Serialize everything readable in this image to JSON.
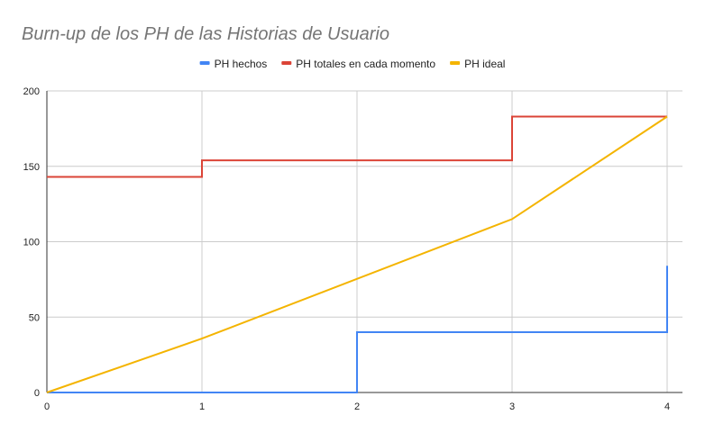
{
  "chart_data": {
    "type": "line",
    "title": "Burn-up de los PH de las Historias de Usuario",
    "xlabel": "",
    "ylabel": "",
    "xlim": [
      0,
      4
    ],
    "ylim": [
      0,
      200
    ],
    "x_ticks": [
      0,
      1,
      2,
      3,
      4
    ],
    "y_ticks": [
      0,
      50,
      100,
      150,
      200
    ],
    "grid": true,
    "legend_position": "top",
    "series": [
      {
        "name": "PH hechos",
        "color": "#4285f4",
        "step": true,
        "points": [
          [
            0,
            0
          ],
          [
            2,
            0
          ],
          [
            2,
            40
          ],
          [
            4,
            40
          ],
          [
            4,
            84
          ]
        ]
      },
      {
        "name": "PH totales en cada momento",
        "color": "#db4437",
        "step": true,
        "points": [
          [
            0,
            143
          ],
          [
            1,
            143
          ],
          [
            1,
            154
          ],
          [
            3,
            154
          ],
          [
            3,
            183
          ],
          [
            4,
            183
          ]
        ]
      },
      {
        "name": "PH ideal",
        "color": "#f4b400",
        "step": false,
        "points": [
          [
            0,
            0
          ],
          [
            1,
            35.75
          ],
          [
            3,
            115
          ],
          [
            4,
            183
          ]
        ]
      }
    ]
  }
}
